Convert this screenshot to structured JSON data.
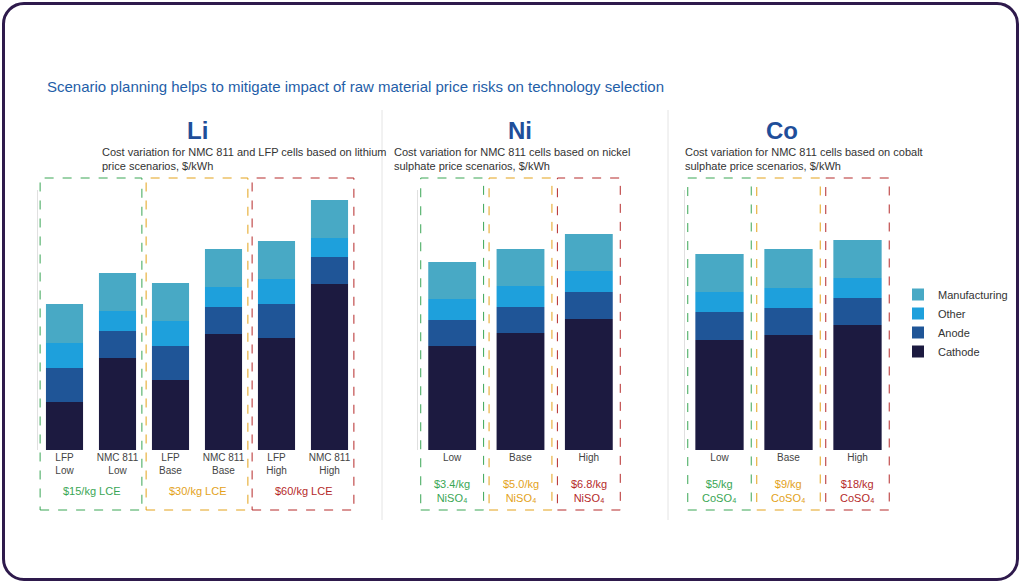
{
  "title": "Scenario planning helps to mitigate impact of raw material price risks on technology selection",
  "chart_data": [
    {
      "type": "bar",
      "stacked": true,
      "title": "Li",
      "subtitle": "Cost variation for NMC 811 and LFP cells based on lithium price scenarios, $/kWh",
      "categories": [
        "LFP Low",
        "NMC 811 Low",
        "LFP Base",
        "NMC 811 Base",
        "LFP High",
        "NMC 811 High"
      ],
      "series": [
        {
          "name": "Cathode",
          "color": "#1c1a40",
          "values": [
            24,
            46,
            35,
            58,
            56,
            83
          ]
        },
        {
          "name": "Anode",
          "color": "#1f5597",
          "values": [
            17,
            13.5,
            17,
            13.5,
            17,
            13.5
          ]
        },
        {
          "name": "Other",
          "color": "#1ea0dc",
          "values": [
            12.5,
            10,
            12.5,
            10,
            12.5,
            9.5
          ]
        },
        {
          "name": "Manufacturing",
          "color": "#48a9c5",
          "values": [
            19.5,
            19,
            19,
            19,
            19,
            19
          ]
        }
      ],
      "annotations": [
        {
          "text": "$15/kg LCE",
          "categories": [
            "LFP Low",
            "NMC 811 Low"
          ],
          "color": "#3aa655"
        },
        {
          "text": "$30/kg LCE",
          "categories": [
            "LFP Base",
            "NMC 811 Base"
          ],
          "color": "#e3a21a"
        },
        {
          "text": "$60/kg LCE",
          "categories": [
            "LFP High",
            "NMC 811 High"
          ],
          "color": "#b52a2a"
        }
      ],
      "ylim": [
        0,
        130
      ],
      "tick_labels": "x",
      "grid": false
    },
    {
      "type": "bar",
      "stacked": true,
      "title": "Ni",
      "subtitle": "Cost variation for NMC 811 cells based on nickel sulphate price scenarios, $/kWh",
      "categories": [
        "Low",
        "Base",
        "High"
      ],
      "series": [
        {
          "name": "Cathode",
          "color": "#1c1a40",
          "values": [
            52,
            58.5,
            65.5
          ]
        },
        {
          "name": "Anode",
          "color": "#1f5597",
          "values": [
            13,
            13,
            13.5
          ]
        },
        {
          "name": "Other",
          "color": "#1ea0dc",
          "values": [
            10.5,
            10.5,
            10.5
          ]
        },
        {
          "name": "Manufacturing",
          "color": "#48a9c5",
          "values": [
            18.5,
            18.5,
            18.5
          ]
        }
      ],
      "annotations": [
        {
          "text": "$3.4/kg\nNiSO₄",
          "categories": [
            "Low"
          ],
          "color": "#3aa655"
        },
        {
          "text": "$5.0/kg\nNiSO₄",
          "categories": [
            "Base"
          ],
          "color": "#e3a21a"
        },
        {
          "text": "$6.8/kg\nNiSO₄",
          "categories": [
            "High"
          ],
          "color": "#b52a2a"
        }
      ],
      "ylim": [
        0,
        130
      ],
      "tick_labels": "x",
      "grid": false
    },
    {
      "type": "bar",
      "stacked": true,
      "title": "Co",
      "subtitle": "Cost variation for NMC 811 cells based on cobalt sulphate price scenarios, $/kWh",
      "categories": [
        "Low",
        "Base",
        "High"
      ],
      "series": [
        {
          "name": "Cathode",
          "color": "#1c1a40",
          "values": [
            55,
            57.5,
            62.5
          ]
        },
        {
          "name": "Anode",
          "color": "#1f5597",
          "values": [
            14,
            13.5,
            13.5
          ]
        },
        {
          "name": "Other",
          "color": "#1ea0dc",
          "values": [
            10,
            10,
            10
          ]
        },
        {
          "name": "Manufacturing",
          "color": "#48a9c5",
          "values": [
            19,
            19.5,
            19
          ]
        }
      ],
      "annotations": [
        {
          "text": "$5/kg\nCoSO₄",
          "categories": [
            "Low"
          ],
          "color": "#3aa655"
        },
        {
          "text": "$9/kg\nCoSO₄",
          "categories": [
            "Base"
          ],
          "color": "#e3a21a"
        },
        {
          "text": "$18/kg\nCoSO₄",
          "categories": [
            "High"
          ],
          "color": "#b52a2a"
        }
      ],
      "ylim": [
        0,
        130
      ],
      "tick_labels": "x",
      "grid": false,
      "legend": "right"
    }
  ]
}
